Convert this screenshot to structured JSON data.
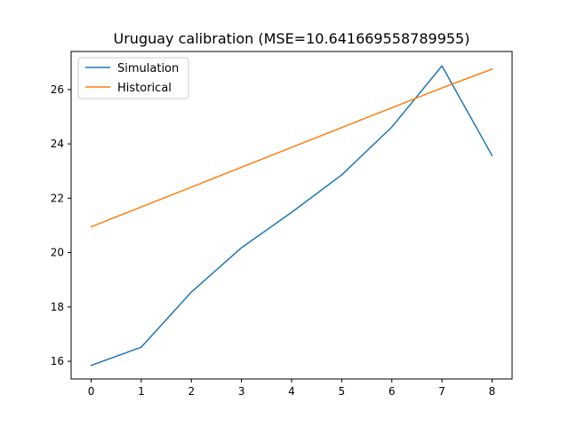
{
  "chart_data": {
    "type": "line",
    "title": "Uruguay calibration (MSE=10.641669558789955)",
    "xlabel": "",
    "ylabel": "",
    "x": [
      0,
      1,
      2,
      3,
      4,
      5,
      6,
      7,
      8
    ],
    "xlim": [
      -0.4,
      8.4
    ],
    "ylim": [
      15.35,
      27.4
    ],
    "xticks": [
      0,
      1,
      2,
      3,
      4,
      5,
      6,
      7,
      8
    ],
    "yticks": [
      16,
      18,
      20,
      22,
      24,
      26
    ],
    "grid": false,
    "legend_position": "upper-left",
    "series": [
      {
        "name": "Simulation",
        "color": "#1f77b4",
        "values": [
          15.85,
          16.52,
          18.55,
          20.18,
          21.48,
          22.86,
          24.62,
          26.87,
          23.57
        ]
      },
      {
        "name": "Historical",
        "color": "#ff7f0e",
        "values": [
          20.95,
          21.68,
          22.41,
          23.14,
          23.87,
          24.6,
          25.33,
          26.06,
          26.75
        ]
      }
    ]
  }
}
